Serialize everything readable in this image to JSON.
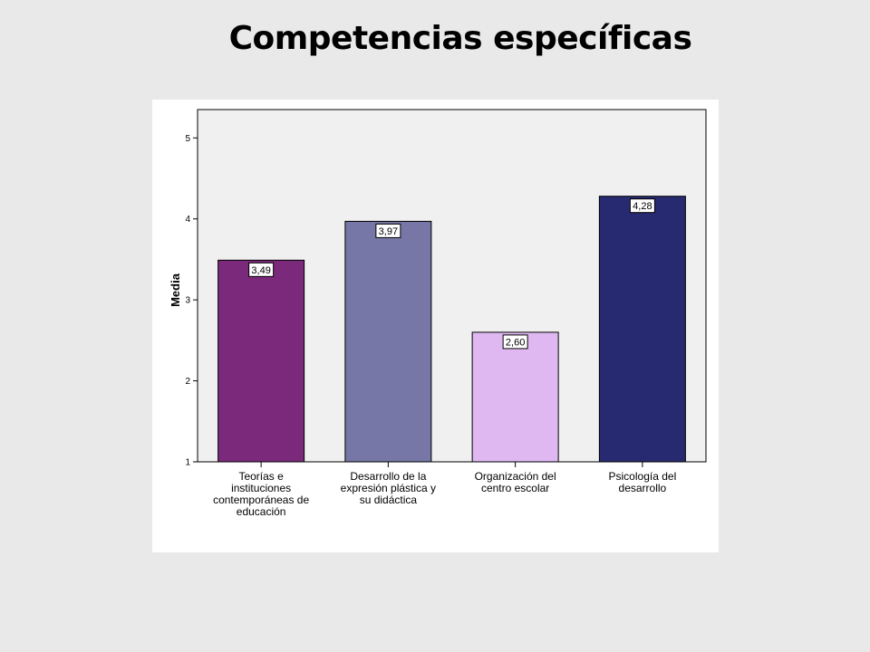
{
  "slide": {
    "title": "Competencias específicas"
  },
  "chart_data": {
    "type": "bar",
    "categories": [
      "Teorías e instituciones contemporáneas de educación",
      "Desarrollo de la expresión plástica y su didáctica",
      "Organización del centro escolar",
      "Psicología del desarrollo"
    ],
    "category_lines": [
      [
        "Teorías e",
        "instituciones",
        "contemporáneas de",
        "educación"
      ],
      [
        "Desarrollo de la",
        "expresión plástica y",
        "su didáctica"
      ],
      [
        "Organización del",
        "centro escolar"
      ],
      [
        "Psicología del",
        "desarrollo"
      ]
    ],
    "values": [
      3.49,
      3.97,
      2.6,
      4.28
    ],
    "data_labels": [
      "3,49",
      "3,97",
      "2,60",
      "4,28"
    ],
    "bar_colors": [
      "#7b2a7b",
      "#7777a7",
      "#dfb8f2",
      "#272a70"
    ],
    "ylabel": "Media",
    "ylim": [
      1,
      5.35
    ],
    "yticks": [
      1,
      2,
      3,
      4,
      5
    ],
    "ytick_labels": [
      "1",
      "2",
      "3",
      "4",
      "5"
    ],
    "grid": false,
    "plot_background": "#f0f0f0"
  }
}
